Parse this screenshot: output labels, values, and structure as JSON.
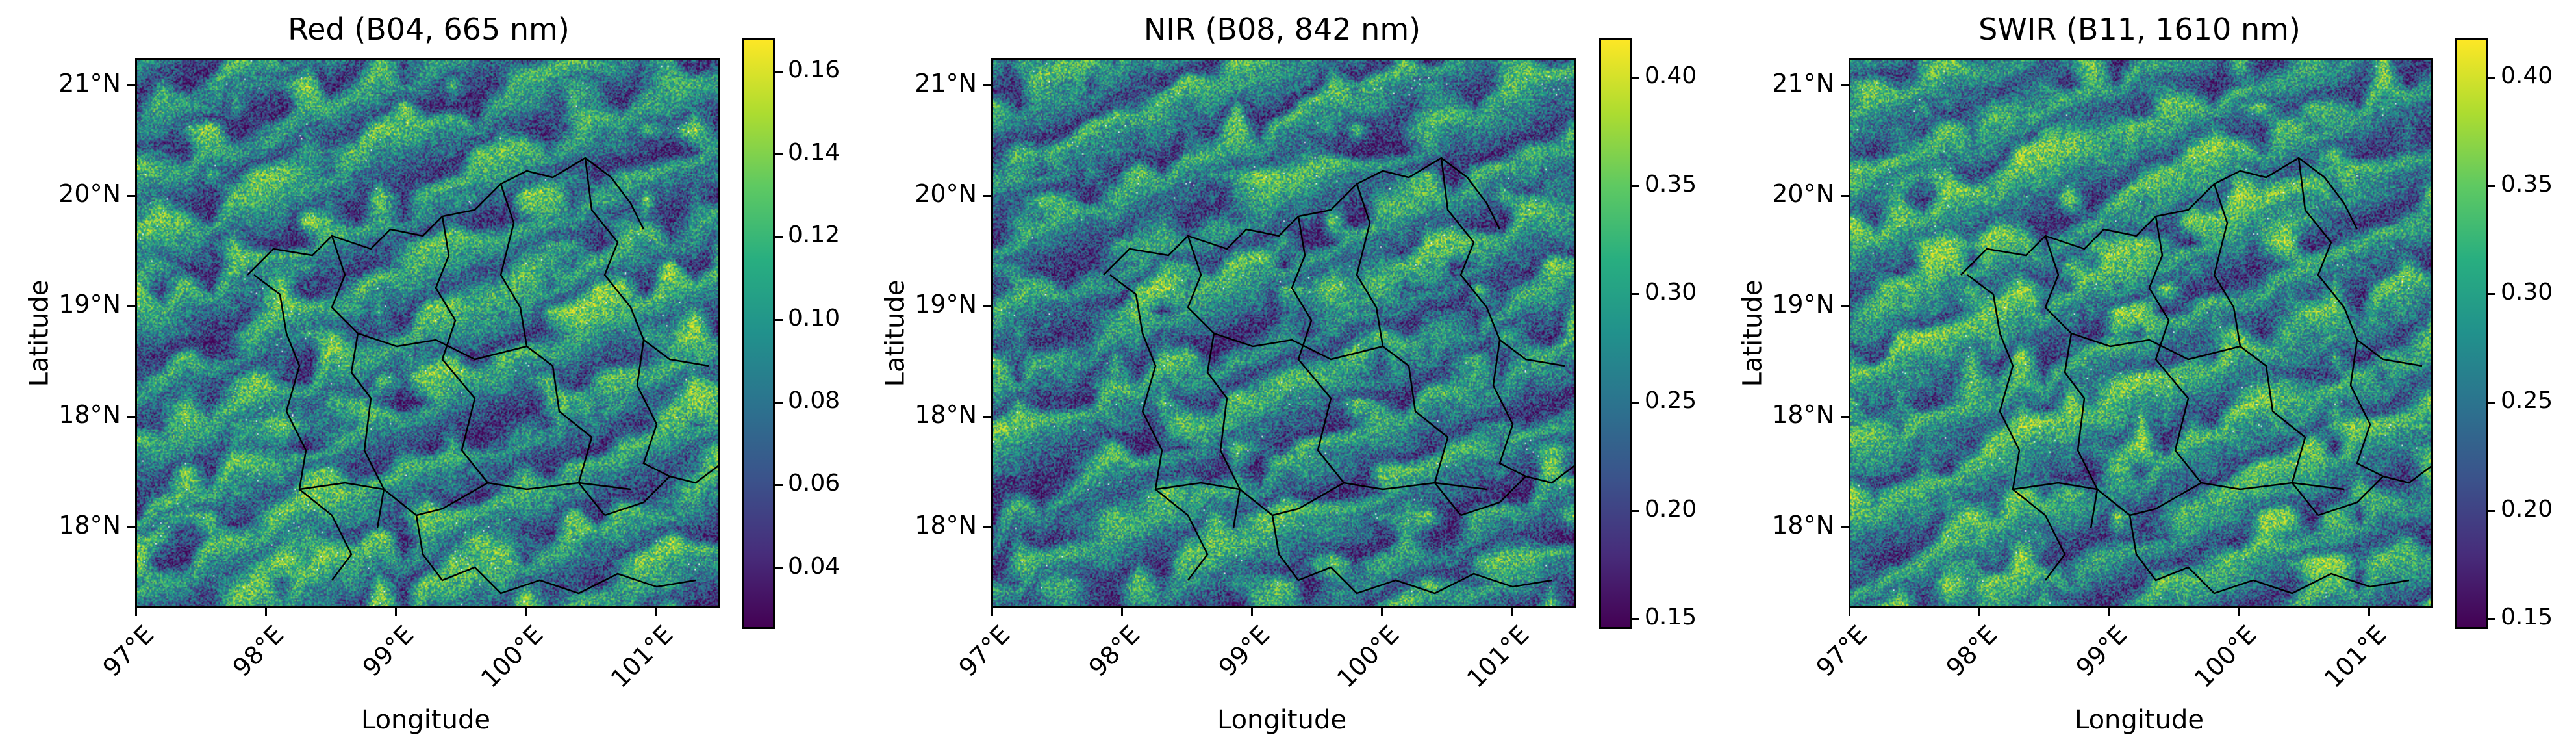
{
  "figure": {
    "panels": [
      {
        "id": "red",
        "title": "Red (B04, 665 nm)",
        "xlabel": "Longitude",
        "ylabel": "Latitude",
        "x_ticks": [
          "97°E",
          "98°E",
          "99°E",
          "100°E",
          "101°E"
        ],
        "y_ticks": [
          "21°N",
          "20°N",
          "19°N",
          "18°N",
          "18°N"
        ],
        "colorbar_ticks": [
          "0.16",
          "0.14",
          "0.12",
          "0.10",
          "0.08",
          "0.06",
          "0.04"
        ],
        "colorbar_range": [
          0.025,
          0.168
        ],
        "colormap": "viridis"
      },
      {
        "id": "nir",
        "title": "NIR (B08, 842 nm)",
        "xlabel": "Longitude",
        "ylabel": "Latitude",
        "x_ticks": [
          "97°E",
          "98°E",
          "99°E",
          "100°E",
          "101°E"
        ],
        "y_ticks": [
          "21°N",
          "20°N",
          "19°N",
          "18°N",
          "18°N"
        ],
        "colorbar_ticks": [
          "0.40",
          "0.35",
          "0.30",
          "0.25",
          "0.20",
          "0.15"
        ],
        "colorbar_range": [
          0.145,
          0.418
        ],
        "colormap": "viridis"
      },
      {
        "id": "swir",
        "title": "SWIR (B11, 1610 nm)",
        "xlabel": "Longitude",
        "ylabel": "Latitude",
        "x_ticks": [
          "97°E",
          "98°E",
          "99°E",
          "100°E",
          "101°E"
        ],
        "y_ticks": [
          "21°N",
          "20°N",
          "19°N",
          "18°N",
          "18°N"
        ],
        "colorbar_ticks": [
          "0.40",
          "0.35",
          "0.30",
          "0.25",
          "0.20",
          "0.15"
        ],
        "colorbar_range": [
          0.145,
          0.418
        ],
        "colormap": "viridis"
      }
    ],
    "colors": {
      "viridis": [
        "#440154",
        "#472d7b",
        "#3b528b",
        "#2c728e",
        "#21918c",
        "#28ae80",
        "#5ec962",
        "#addc30",
        "#fde725"
      ],
      "border": "#000000",
      "nodata": "#ffffff"
    }
  }
}
